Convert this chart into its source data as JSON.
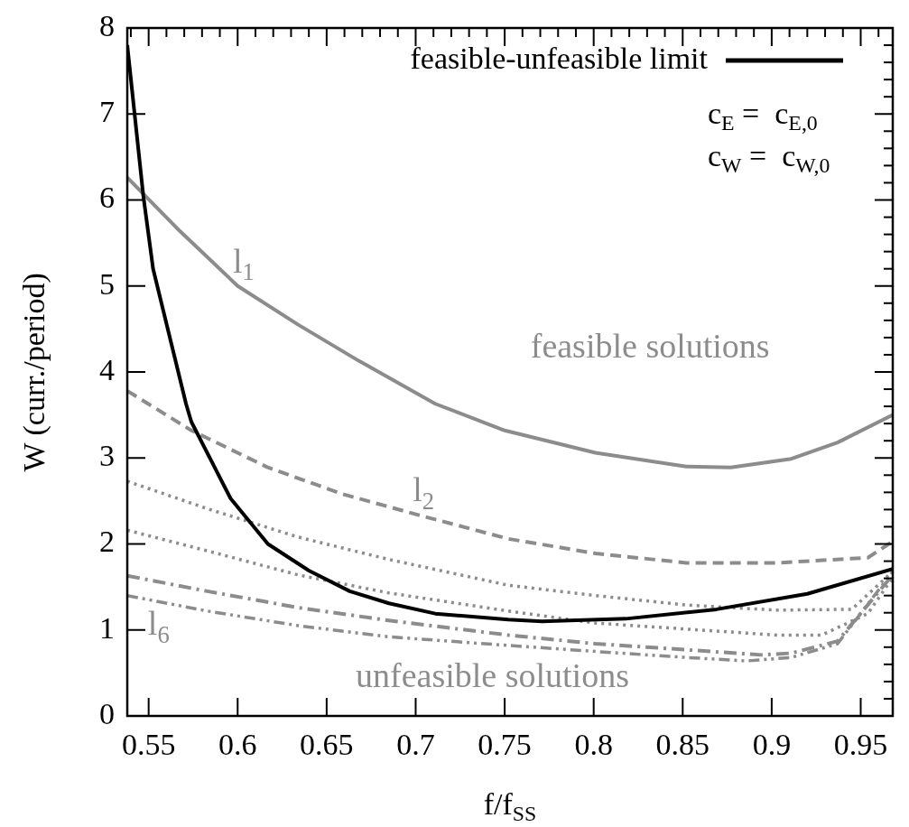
{
  "chart_data": {
    "type": "line",
    "xlabel": "f/f$_{SS}$",
    "ylabel": "W (curr./period)",
    "xlim": [
      0.538,
      0.968
    ],
    "xticks": [
      0.55,
      0.6,
      0.65,
      0.7,
      0.75,
      0.8,
      0.85,
      0.9,
      0.95
    ],
    "ylim": [
      0,
      8
    ],
    "yticks": [
      0,
      1,
      2,
      3,
      4,
      5,
      6,
      7,
      8
    ],
    "grid": false,
    "legend": "top right",
    "marker": "none",
    "series": [
      {
        "name": "feasible-unfeasible limit",
        "color": "#000000",
        "line_style": "solid",
        "x": [
          0.538,
          0.547,
          0.5525,
          0.571,
          0.574,
          0.596,
          0.617,
          0.64,
          0.663,
          0.685,
          0.711,
          0.752,
          0.771,
          0.818,
          0.869,
          0.92,
          0.968
        ],
        "values": [
          7.8,
          6.05,
          5.2,
          3.63,
          3.42,
          2.53,
          2.0,
          1.69,
          1.45,
          1.31,
          1.19,
          1.12,
          1.1,
          1.13,
          1.24,
          1.42,
          1.71
        ]
      },
      {
        "color": "#8c8c8c",
        "line_style": "solid",
        "x": [
          0.538,
          0.566,
          0.6,
          0.634,
          0.668,
          0.711,
          0.75,
          0.801,
          0.852,
          0.877,
          0.911,
          0.937,
          0.968
        ],
        "values": [
          6.26,
          5.67,
          5.0,
          4.55,
          4.13,
          3.63,
          3.32,
          3.06,
          2.9,
          2.89,
          2.99,
          3.18,
          3.5
        ]
      },
      {
        "color": "#8c8c8c",
        "line_style": "dashed",
        "x": [
          0.538,
          0.574,
          0.617,
          0.659,
          0.701,
          0.752,
          0.801,
          0.852,
          0.903,
          0.954,
          0.968
        ],
        "values": [
          3.78,
          3.32,
          2.89,
          2.58,
          2.34,
          2.06,
          1.89,
          1.78,
          1.78,
          1.84,
          2.03
        ]
      },
      {
        "color": "#8c8c8c",
        "line_style": "dotted",
        "x": [
          0.538,
          0.583,
          0.634,
          0.685,
          0.752,
          0.801,
          0.852,
          0.903,
          0.945,
          0.968
        ],
        "values": [
          2.73,
          2.41,
          2.08,
          1.82,
          1.52,
          1.4,
          1.29,
          1.23,
          1.24,
          1.68
        ]
      },
      {
        "color": "#8c8c8c",
        "line_style": "dotted",
        "x": [
          0.538,
          0.583,
          0.634,
          0.685,
          0.752,
          0.801,
          0.852,
          0.903,
          0.928,
          0.954,
          0.968
        ],
        "values": [
          2.16,
          1.92,
          1.64,
          1.43,
          1.22,
          1.08,
          1.01,
          0.94,
          0.94,
          1.19,
          1.61
        ]
      },
      {
        "color": "#8c8c8c",
        "line_style": "dashdot",
        "x": [
          0.538,
          0.583,
          0.634,
          0.685,
          0.752,
          0.801,
          0.852,
          0.894,
          0.911,
          0.937,
          0.968
        ],
        "values": [
          1.63,
          1.45,
          1.26,
          1.11,
          0.94,
          0.84,
          0.77,
          0.71,
          0.73,
          0.87,
          1.64
        ]
      },
      {
        "color": "#8c8c8c",
        "line_style": "dashdotdot",
        "x": [
          0.538,
          0.583,
          0.634,
          0.685,
          0.752,
          0.801,
          0.852,
          0.886,
          0.911,
          0.937,
          0.968
        ],
        "values": [
          1.4,
          1.22,
          1.05,
          0.92,
          0.82,
          0.75,
          0.68,
          0.64,
          0.68,
          0.84,
          1.68
        ]
      }
    ],
    "annotations": [
      "l$_{1}$",
      "l$_{2}$",
      "l$_{6}$",
      "feasible solutions",
      "unfeasible solutions",
      "c$_{E}$ =  c$_{E,0}$",
      "c$_{W}$ =  c$_{W,0}$"
    ]
  }
}
